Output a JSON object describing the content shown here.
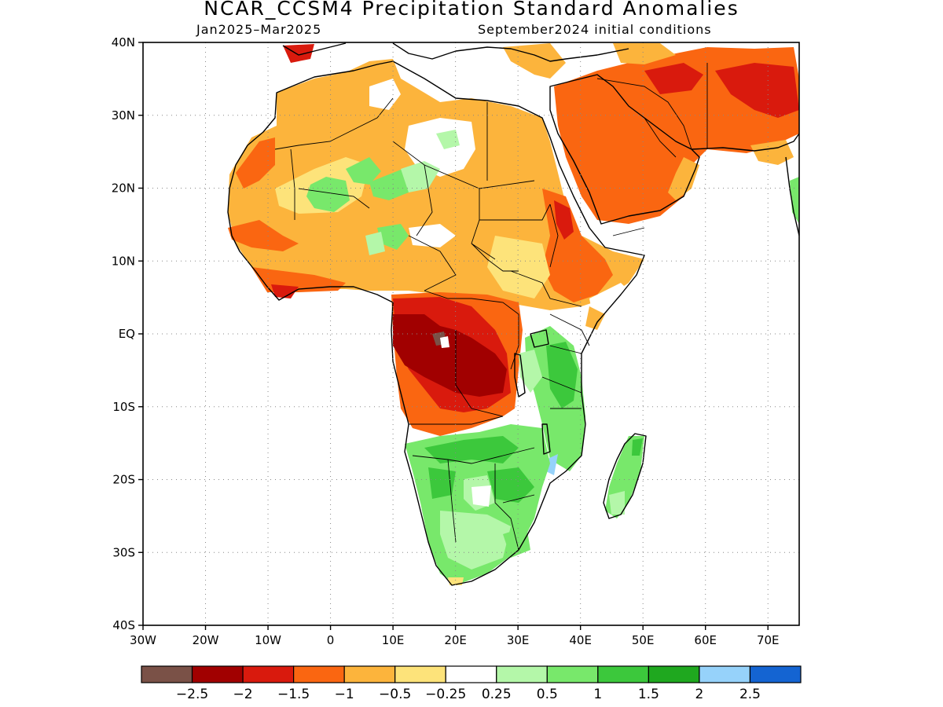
{
  "title": "NCAR_CCSM4 Precipitation Standard Anomalies",
  "subtitle_left": "Jan2025–Mar2025",
  "subtitle_right": "September2024 initial conditions",
  "map": {
    "lon_range": [
      -30,
      75
    ],
    "lat_range": [
      -40,
      40
    ],
    "lat_ticks": [
      {
        "value": 40,
        "label": "40N"
      },
      {
        "value": 30,
        "label": "30N"
      },
      {
        "value": 20,
        "label": "20N"
      },
      {
        "value": 10,
        "label": "10N"
      },
      {
        "value": 0,
        "label": "EQ"
      },
      {
        "value": -10,
        "label": "10S"
      },
      {
        "value": -20,
        "label": "20S"
      },
      {
        "value": -30,
        "label": "30S"
      },
      {
        "value": -40,
        "label": "40S"
      }
    ],
    "lon_ticks": [
      {
        "value": -30,
        "label": "30W"
      },
      {
        "value": -20,
        "label": "20W"
      },
      {
        "value": -10,
        "label": "10W"
      },
      {
        "value": 0,
        "label": "0"
      },
      {
        "value": 10,
        "label": "10E"
      },
      {
        "value": 20,
        "label": "20E"
      },
      {
        "value": 30,
        "label": "30E"
      },
      {
        "value": 40,
        "label": "40E"
      },
      {
        "value": 50,
        "label": "50E"
      },
      {
        "value": 60,
        "label": "60E"
      },
      {
        "value": 70,
        "label": "70E"
      }
    ],
    "grid": "dotted"
  },
  "colorbar": {
    "colors": [
      "#7a5147",
      "#a10000",
      "#d91a0d",
      "#fa6611",
      "#fcb43c",
      "#fde37a",
      "#ffffff",
      "#b4f7a9",
      "#78e86b",
      "#3cc83c",
      "#1fa81f",
      "#96d2fa",
      "#1464d2"
    ],
    "labels": [
      "−2.5",
      "−2",
      "−1.5",
      "−1",
      "−0.5",
      "−0.25",
      "0.25",
      "0.5",
      "1",
      "1.5",
      "2",
      "2.5"
    ]
  }
}
